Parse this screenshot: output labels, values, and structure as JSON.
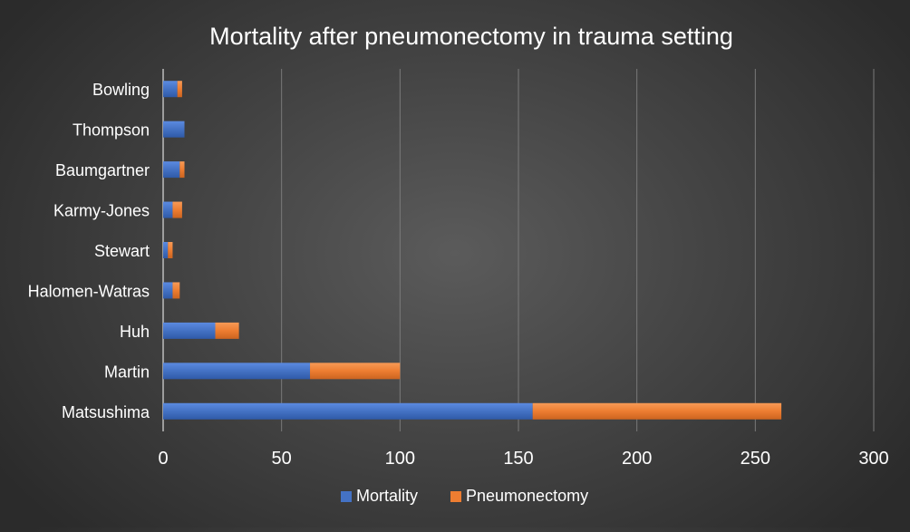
{
  "chart_data": {
    "type": "bar",
    "orientation": "horizontal",
    "stacked": true,
    "title": "Mortality after pneumonectomy in trauma setting",
    "categories": [
      "Matsushima",
      "Martin",
      "Huh",
      "Halomen-Watras",
      "Stewart",
      "Karmy-Jones",
      "Baumgartner",
      "Thompson",
      "Bowling"
    ],
    "series": [
      {
        "name": "Mortality",
        "color": "#4472C4",
        "values": [
          156,
          62,
          22,
          4,
          2,
          4,
          7,
          9,
          6
        ]
      },
      {
        "name": "Pneumonectomy",
        "color": "#ED7D31",
        "values": [
          105,
          38,
          10,
          3,
          2,
          4,
          2,
          0,
          2
        ]
      }
    ],
    "xlim": [
      0,
      300
    ],
    "x_ticks": [
      "0",
      "50",
      "100",
      "150",
      "200",
      "250",
      "300"
    ],
    "grid": "vertical",
    "legend": "bottom"
  }
}
